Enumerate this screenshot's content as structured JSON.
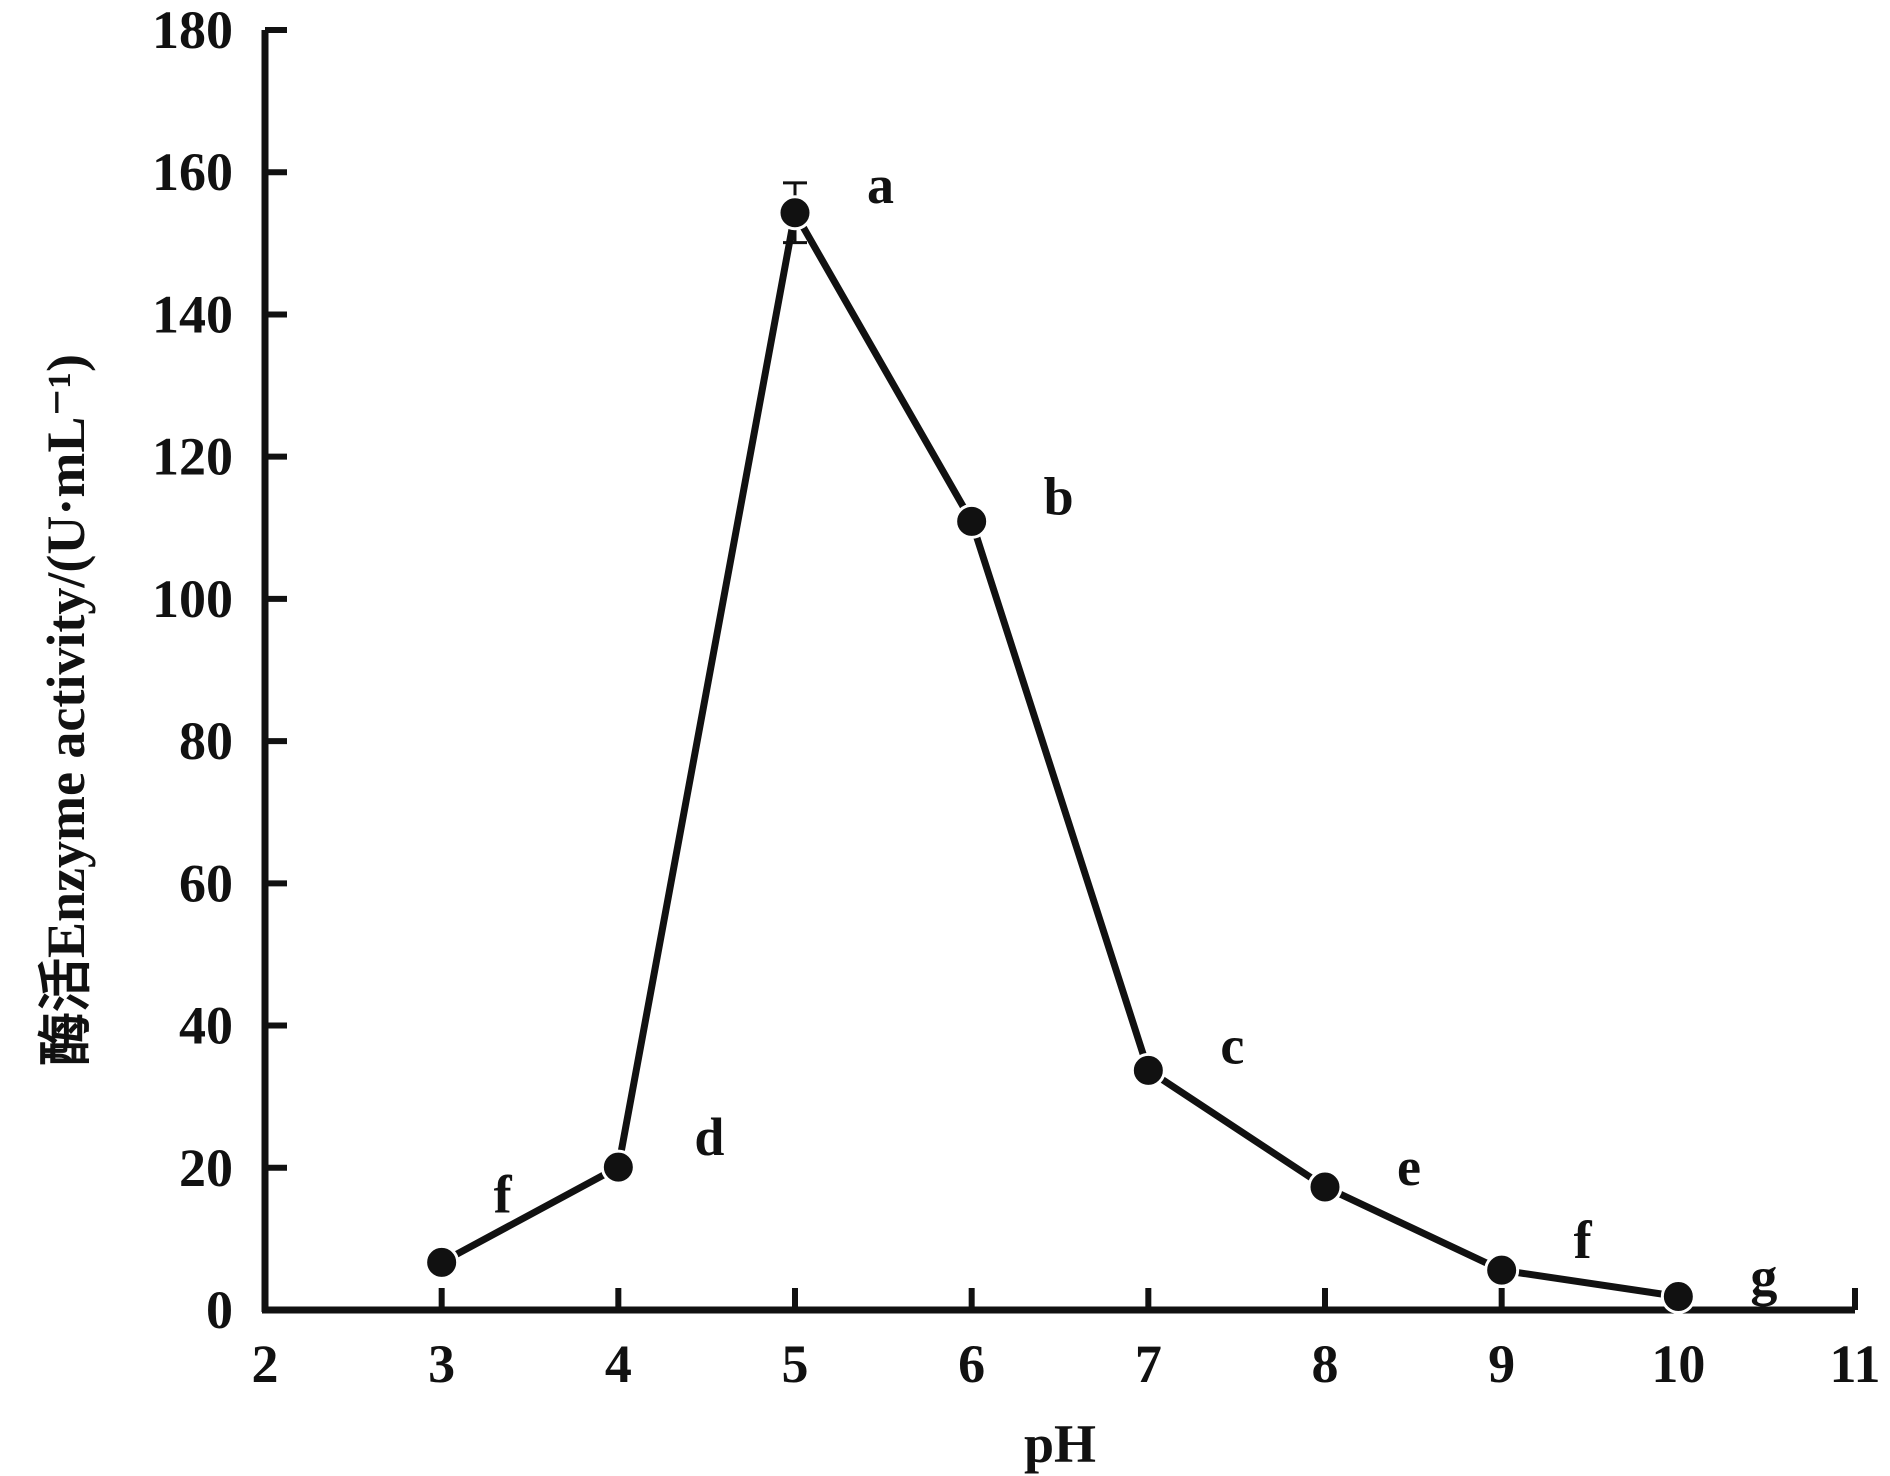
{
  "chart_data": {
    "type": "line",
    "title": "",
    "xlabel": "pH",
    "ylabel": "酶活Enzyme activity/(U·mL⁻¹)",
    "xlim": [
      2,
      11
    ],
    "ylim": [
      0,
      180
    ],
    "x_ticks": [
      2,
      3,
      4,
      5,
      6,
      7,
      8,
      9,
      10,
      11
    ],
    "y_ticks": [
      0,
      20,
      40,
      60,
      80,
      100,
      120,
      140,
      160,
      180
    ],
    "grid": false,
    "series": [
      {
        "x": [
          3,
          4,
          5,
          6,
          7,
          8,
          9,
          10
        ],
        "y": [
          6.7,
          20.1,
          154.3,
          110.9,
          33.7,
          17.3,
          5.6,
          1.9
        ],
        "error": [
          0,
          0,
          4.2,
          0,
          0,
          0,
          0,
          0
        ],
        "labels": [
          "f",
          "d",
          "a",
          "b",
          "c",
          "e",
          "f",
          "g"
        ]
      }
    ]
  }
}
